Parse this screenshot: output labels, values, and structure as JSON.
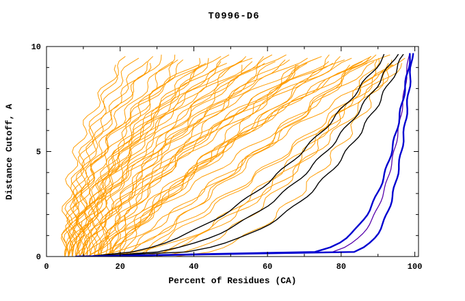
{
  "chart_data": {
    "type": "line",
    "title": "T0996-D6",
    "xlabel": "Percent of Residues (CA)",
    "ylabel": "Distance Cutoff, A",
    "xlim": [
      0,
      101
    ],
    "ylim": [
      0,
      10
    ],
    "xticks": [
      0,
      20,
      40,
      60,
      80,
      100
    ],
    "yticks": [
      0,
      5,
      10
    ],
    "x_minor_ticks": [
      10,
      30,
      50,
      70,
      90
    ],
    "y_minor_ticks": [
      1,
      2,
      3,
      4,
      6,
      7,
      8,
      9
    ],
    "grid": false,
    "legend": "none",
    "description": "CASP-style cumulative distance-cutoff curves: many orange model curves, black reference curves, purple and thick blue best-model curves. Each curve parameterized as [x_start_percent, x_at_top_percent, shape_exponent] with x(y)=x0+(xtop-x0)*(y/ytop)^q.",
    "series_groups": [
      {
        "name": "model-curves",
        "color": "#ff9c00",
        "stroke_width": 1,
        "jitter": 1.3,
        "top_y": null,
        "curves": [
          [
            5,
            20,
            1.8
          ],
          [
            6,
            24,
            2.2
          ],
          [
            5,
            28,
            1.5
          ],
          [
            7,
            30,
            2.5
          ],
          [
            6,
            33,
            1.2
          ],
          [
            8,
            35,
            2.0
          ],
          [
            5,
            38,
            1.6
          ],
          [
            9,
            40,
            2.8
          ],
          [
            6,
            42,
            1.3
          ],
          [
            10,
            44,
            2.1
          ],
          [
            7,
            46,
            1.7
          ],
          [
            11,
            48,
            2.4
          ],
          [
            6,
            50,
            1.4
          ],
          [
            12,
            52,
            1.9
          ],
          [
            8,
            54,
            1.1
          ],
          [
            13,
            56,
            2.6
          ],
          [
            7,
            58,
            1.5
          ],
          [
            14,
            60,
            2.0
          ],
          [
            9,
            62,
            1.2
          ],
          [
            15,
            64,
            2.3
          ],
          [
            8,
            66,
            1.6
          ],
          [
            16,
            68,
            1.0
          ],
          [
            10,
            70,
            1.8
          ],
          [
            17,
            72,
            2.2
          ],
          [
            9,
            74,
            1.3
          ],
          [
            18,
            76,
            1.7
          ],
          [
            11,
            78,
            0.9
          ],
          [
            14,
            80,
            1.5
          ],
          [
            10,
            82,
            1.1
          ],
          [
            16,
            84,
            1.9
          ],
          [
            12,
            86,
            0.8
          ],
          [
            18,
            88,
            1.4
          ],
          [
            11,
            90,
            1.0
          ],
          [
            20,
            92,
            1.6
          ],
          [
            13,
            94,
            0.7
          ],
          [
            22,
            95,
            1.2
          ],
          [
            12,
            96,
            0.5
          ],
          [
            24,
            97,
            0.9
          ],
          [
            5,
            22,
            2.6
          ],
          [
            6,
            26,
            1.9
          ],
          [
            7,
            32,
            2.3
          ],
          [
            8,
            36,
            1.4
          ],
          [
            9,
            41,
            2.7
          ],
          [
            10,
            45,
            1.6
          ],
          [
            11,
            49,
            2.1
          ],
          [
            12,
            53,
            1.3
          ],
          [
            13,
            57,
            2.4
          ],
          [
            14,
            61,
            1.1
          ],
          [
            15,
            65,
            1.8
          ],
          [
            16,
            69,
            0.95
          ],
          [
            17,
            73,
            1.5
          ],
          [
            18,
            77,
            2.0
          ],
          [
            19,
            81,
            1.25
          ],
          [
            20,
            85,
            0.85
          ],
          [
            21,
            89,
            1.45
          ],
          [
            25,
            91,
            0.6
          ],
          [
            28,
            93,
            0.75
          ],
          [
            30,
            90,
            0.55
          ],
          [
            35,
            94,
            0.5
          ],
          [
            26,
            87,
            1.05
          ]
        ]
      },
      {
        "name": "reference-curves-black",
        "color": "#000000",
        "stroke_width": 1.4,
        "jitter": 0.5,
        "top_y": 9.62,
        "curves": [
          [
            10,
            97,
            0.3
          ],
          [
            12,
            95,
            0.4
          ],
          [
            11,
            92,
            0.5
          ]
        ]
      },
      {
        "name": "overlay-curve-purple",
        "color": "#5500aa",
        "stroke_width": 1.3,
        "jitter": 0.2,
        "top_y": 9.6,
        "curves": [
          [
            9,
            98.4,
            0.07
          ]
        ]
      },
      {
        "name": "best-curves-blue",
        "color": "#0000d0",
        "stroke_width": 2.4,
        "jitter": 0.25,
        "top_y": 9.65,
        "curves": [
          [
            8,
            99.3,
            0.05
          ],
          [
            9,
            98.8,
            0.09
          ]
        ]
      }
    ]
  }
}
